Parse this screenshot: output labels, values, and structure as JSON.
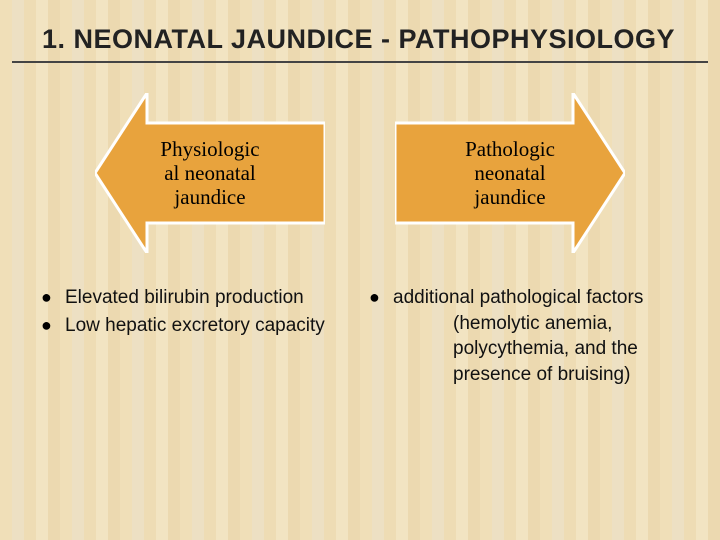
{
  "title": "1. NEONATAL JAUNDICE - PATHOPHYSIOLOGY",
  "arrow_fill": "#e8a33d",
  "arrow_stroke": "#ffffff",
  "left_arrow_label": "Physiologic\nal neonatal\njaundice",
  "right_arrow_label": "Pathologic\nneonatal\njaundice",
  "left_bullets": [
    "Elevated bilirubin production",
    "Low hepatic excretory capacity"
  ],
  "right_bullets": [
    {
      "text": "additional pathological factors",
      "sub": "(hemolytic anemia, polycythemia, and the presence of bruising)"
    }
  ]
}
